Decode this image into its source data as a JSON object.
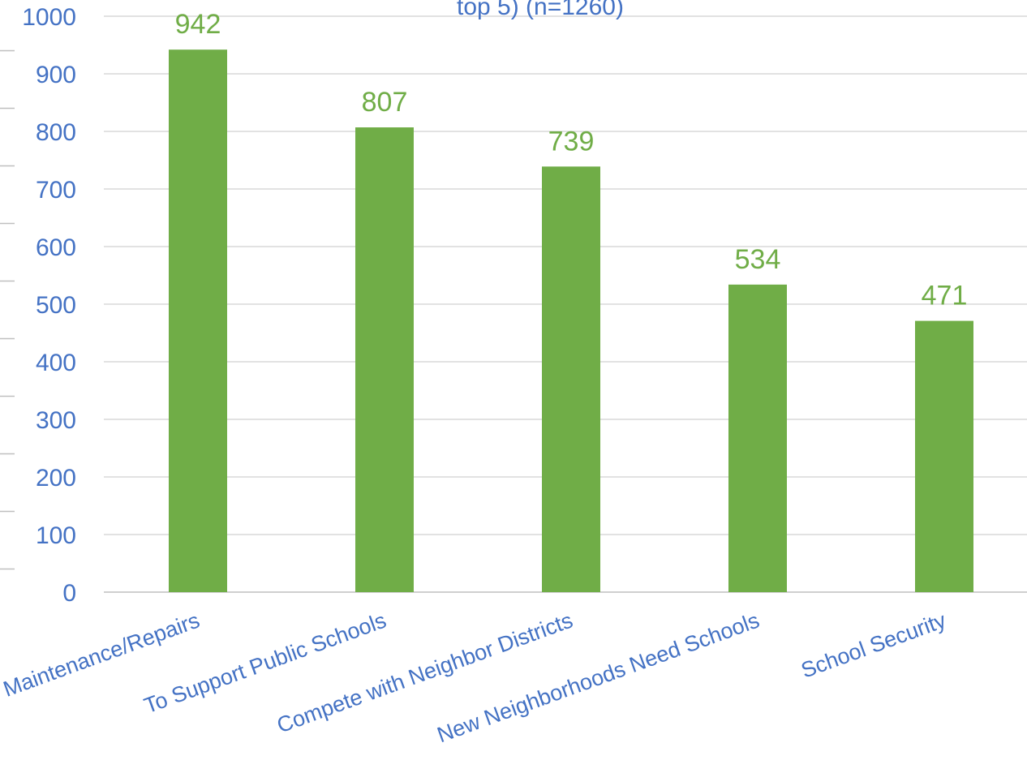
{
  "chart_data": {
    "type": "bar",
    "title": "top 5) (n=1260)",
    "categories": [
      "Maintenance/Repairs",
      "To Support Public Schools",
      "Compete with Neighbor Districts",
      "New Neighborhoods Need Schools",
      "School Security"
    ],
    "values": [
      942,
      807,
      739,
      534,
      471
    ],
    "data_labels": [
      "942",
      "807",
      "739",
      "534",
      "471"
    ],
    "yticks": [
      "0",
      "100",
      "200",
      "300",
      "400",
      "500",
      "600",
      "700",
      "800",
      "900",
      "1000"
    ],
    "ylim": [
      0,
      1000
    ],
    "grid": true,
    "bar_color": "#70AD47",
    "label_color": "#70AD47",
    "text_color": "#4472C4"
  }
}
